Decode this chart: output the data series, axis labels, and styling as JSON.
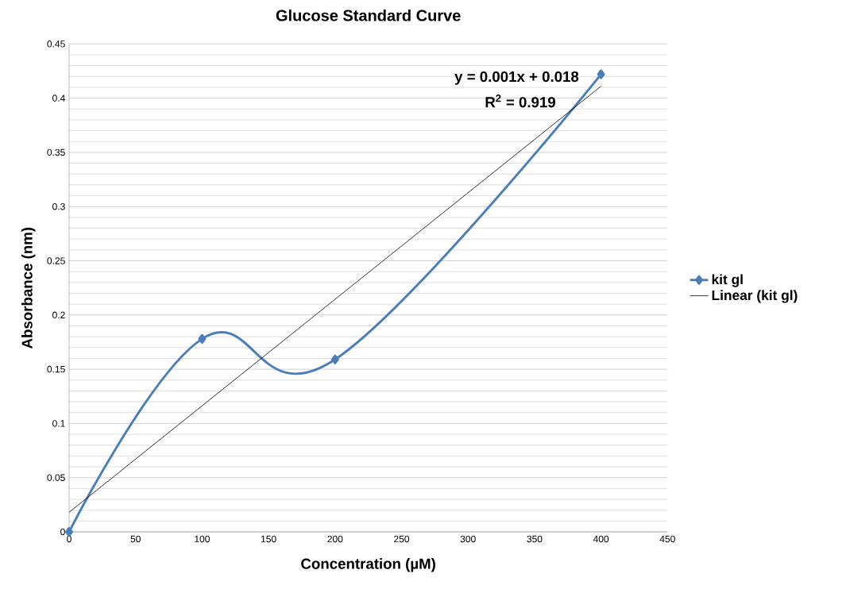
{
  "chart_data": {
    "type": "line",
    "title": "Glucose Standard Curve",
    "xlabel": "Concentration (µM)",
    "ylabel": "Absorbance (nm)",
    "xlim": [
      0,
      450
    ],
    "xticks": [
      0,
      50,
      100,
      150,
      200,
      250,
      300,
      350,
      400,
      450
    ],
    "ylim": [
      0,
      0.45
    ],
    "yticks": [
      0,
      0.05,
      0.1,
      0.15,
      0.2,
      0.25,
      0.3,
      0.35,
      0.4,
      0.45
    ],
    "grid": "y",
    "legend": "right",
    "annotations": [
      "y = 0.001x + 0.018",
      "R$^{2}$ = 0.919"
    ],
    "series": [
      {
        "name": "kit gl",
        "color": "#4a7ebb",
        "marker": "diamond",
        "x": [
          0,
          100,
          200,
          400
        ],
        "values": [
          0,
          0.178,
          0.159,
          0.422
        ]
      },
      {
        "name": "Linear (kit gl)",
        "color": "#000000",
        "marker": "none",
        "x": [
          0,
          400
        ],
        "values": [
          0.018,
          0.411
        ]
      }
    ]
  }
}
